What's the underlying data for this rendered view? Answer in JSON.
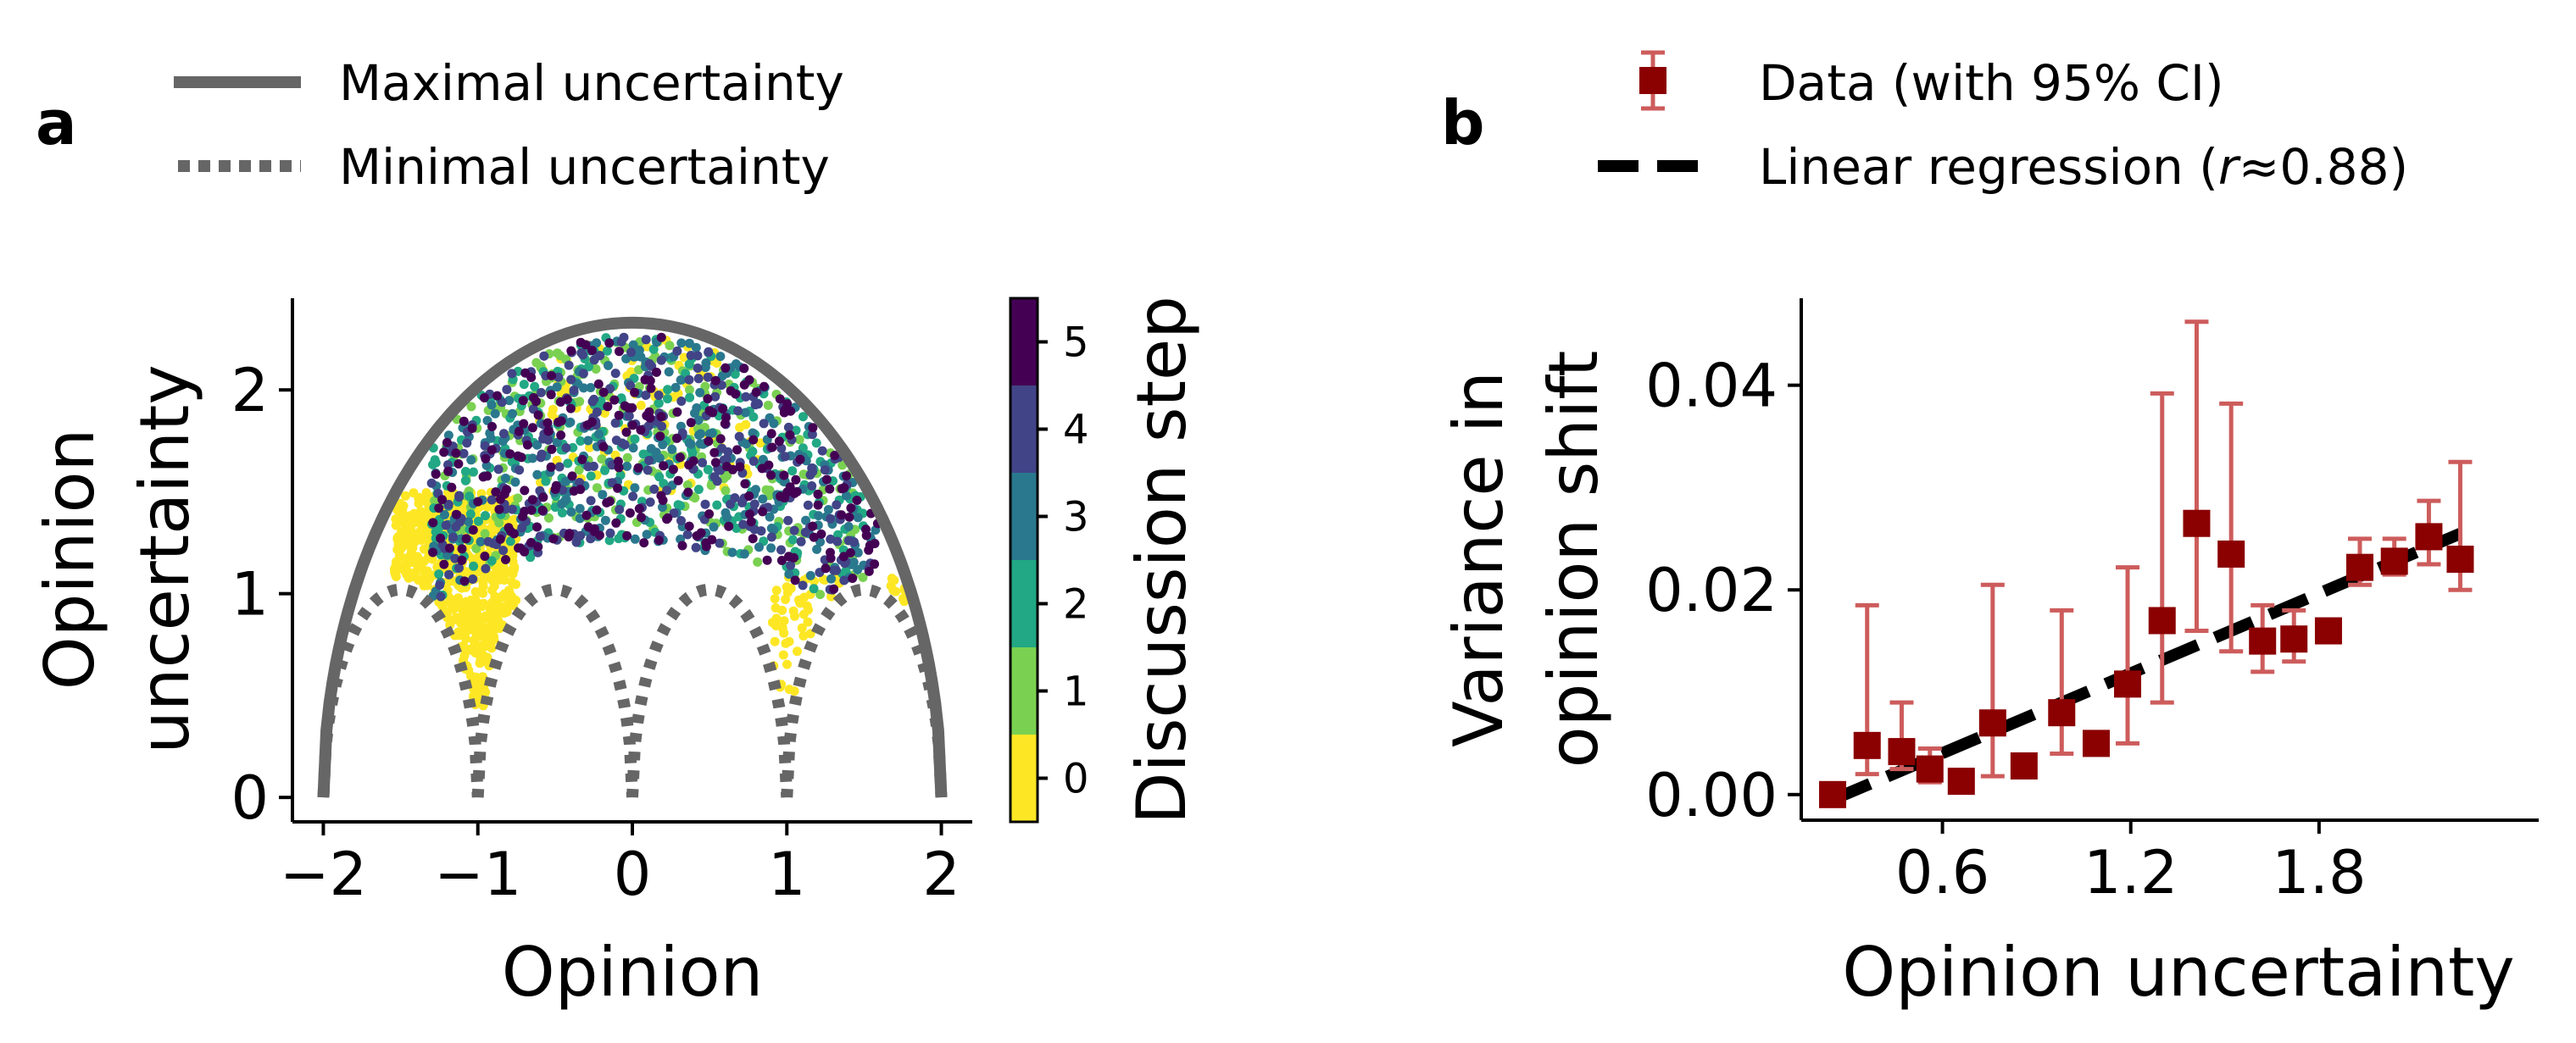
{
  "panels": {
    "a": {
      "letter": "a"
    },
    "b": {
      "letter": "b"
    }
  },
  "chart_data": [
    {
      "type": "scatter",
      "panel": "a",
      "xlabel": "Opinion",
      "ylabel": [
        "Opinion",
        "uncertainty"
      ],
      "xlim": [
        -2.2,
        2.2
      ],
      "ylim": [
        -0.12,
        2.45
      ],
      "xticks": [
        -2,
        -1,
        0,
        1,
        2
      ],
      "xtick_labels": [
        "−2",
        "−1",
        "0",
        "1",
        "2"
      ],
      "yticks": [
        0,
        1,
        2
      ],
      "ytick_labels": [
        "0",
        "1",
        "2"
      ],
      "legend": {
        "placement": "top",
        "entries": [
          {
            "label": "Maximal uncertainty",
            "style": "solid",
            "color": "#666666"
          },
          {
            "label": "Minimal uncertainty",
            "style": "dotted",
            "color": "#666666"
          }
        ]
      },
      "curves": {
        "maximal": {
          "type": "semi-ellipse",
          "center": 0,
          "half_width": 2,
          "peak": 2.33
        },
        "minimal": {
          "type": "arches",
          "nodes": [
            -2,
            -1,
            0,
            1,
            2
          ],
          "peak": 1.02
        }
      },
      "colorbar": {
        "label": "Discussion step",
        "ticks": [
          0,
          1,
          2,
          3,
          4,
          5
        ],
        "colors": [
          "#fde725",
          "#7ad151",
          "#22a884",
          "#2a788e",
          "#414487",
          "#440154"
        ]
      },
      "point_clusters": [
        {
          "step": 0,
          "x_range": [
            -1.55,
            -0.75
          ],
          "y_range": [
            0.45,
            1.5
          ],
          "count": 650
        },
        {
          "step": 0,
          "x_range": [
            -0.6,
            0.9
          ],
          "y_range": [
            1.5,
            2.25
          ],
          "count": 90
        },
        {
          "step": 0,
          "x_range": [
            0.9,
            1.8
          ],
          "y_range": [
            0.2,
            1.1
          ],
          "count": 60
        },
        {
          "step": 1,
          "x_range": [
            -1.3,
            1.5
          ],
          "y_range": [
            0.8,
            2.3
          ],
          "count": 240
        },
        {
          "step": 2,
          "x_range": [
            -1.3,
            1.5
          ],
          "y_range": [
            0.4,
            2.3
          ],
          "count": 260
        },
        {
          "step": 3,
          "x_range": [
            -1.3,
            1.6
          ],
          "y_range": [
            0.4,
            2.3
          ],
          "count": 260
        },
        {
          "step": 4,
          "x_range": [
            -1.3,
            1.6
          ],
          "y_range": [
            0.4,
            2.3
          ],
          "count": 250
        },
        {
          "step": 5,
          "x_range": [
            -1.3,
            1.6
          ],
          "y_range": [
            0.4,
            2.3
          ],
          "count": 250
        }
      ]
    },
    {
      "type": "scatter",
      "panel": "b",
      "xlabel": "Opinion uncertainty",
      "ylabel": [
        "Variance in",
        "opinion shift"
      ],
      "xlim": [
        0.15,
        2.5
      ],
      "ylim": [
        -0.0025,
        0.0485
      ],
      "xticks": [
        0.6,
        1.2,
        1.8
      ],
      "xtick_labels": [
        "0.6",
        "1.2",
        "1.8"
      ],
      "yticks": [
        0,
        0.02,
        0.04
      ],
      "ytick_labels": [
        "0.00",
        "0.02",
        "0.04"
      ],
      "legend": {
        "placement": "top",
        "entries": [
          {
            "label": "Data (with 95% CI)",
            "style": "square-errorbar",
            "color": "#8b0000"
          },
          {
            "label_prefix": "Linear regression (",
            "label_var": "r",
            "label_suffix": "≈0.88)",
            "style": "dashed",
            "color": "#000000"
          }
        ]
      },
      "series": [
        {
          "name": "Data (with 95% CI)",
          "x": [
            0.25,
            0.36,
            0.47,
            0.56,
            0.66,
            0.76,
            0.86,
            0.98,
            1.09,
            1.19,
            1.3,
            1.41,
            1.52,
            1.62,
            1.72,
            1.83,
            1.93,
            2.04,
            2.15,
            2.25
          ],
          "y": [
            0.0,
            0.0048,
            0.0042,
            0.0025,
            0.0013,
            0.007,
            0.0028,
            0.008,
            0.005,
            0.0108,
            0.017,
            0.0265,
            0.0235,
            0.015,
            0.0152,
            0.016,
            0.0222,
            0.0228,
            0.0252,
            0.023
          ],
          "ci_low": [
            0.0,
            0.002,
            0.0025,
            0.0012,
            0.0007,
            0.0018,
            0.002,
            0.004,
            0.004,
            0.005,
            0.009,
            0.016,
            0.014,
            0.012,
            0.013,
            0.015,
            0.0205,
            0.0215,
            0.0225,
            0.02
          ],
          "ci_high": [
            0.0005,
            0.0185,
            0.009,
            0.0045,
            0.002,
            0.0205,
            0.0032,
            0.018,
            0.006,
            0.0222,
            0.0392,
            0.0462,
            0.0382,
            0.0185,
            0.018,
            0.017,
            0.025,
            0.025,
            0.0287,
            0.0325
          ]
        }
      ],
      "regression": {
        "x": [
          0.25,
          2.25
        ],
        "y": [
          -0.0005,
          0.0255
        ],
        "r": 0.88
      }
    }
  ]
}
